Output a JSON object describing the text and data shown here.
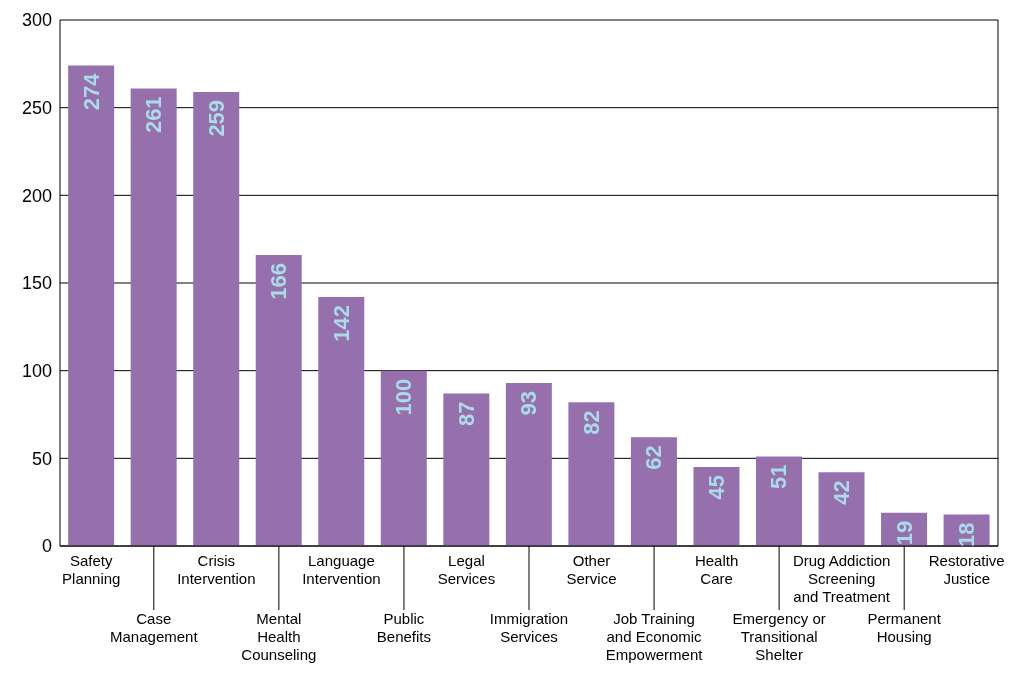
{
  "chart_data": {
    "type": "bar",
    "categories": [
      "Safety\nPlanning",
      "Case\nManagement",
      "Crisis\nIntervention",
      "Mental\nHealth\nCounseling",
      "Language\nIntervention",
      "Public\nBenefits",
      "Legal\nServices",
      "Immigration\nServices",
      "Other\nService",
      "Job Training\nand Economic\nEmpowerment",
      "Health\nCare",
      "Emergency or\nTransitional\nShelter",
      "Drug Addiction\nScreening\nand Treatment",
      "Permanent\nHousing",
      "Restorative\nJustice"
    ],
    "values": [
      274,
      261,
      259,
      166,
      142,
      100,
      87,
      93,
      82,
      62,
      45,
      51,
      42,
      19,
      18
    ],
    "color": "#9670ad",
    "ylim": [
      0,
      300
    ],
    "yticks": [
      0,
      50,
      100,
      150,
      200,
      250,
      300
    ],
    "grid": "y",
    "data_labels": true
  }
}
